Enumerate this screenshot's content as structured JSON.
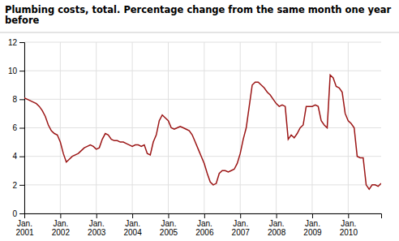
{
  "chart_data": {
    "type": "line",
    "title": "Plumbing costs, total. Percentage change from the same month one year\nbefore",
    "categories": [
      "Jan.\n2001",
      null,
      null,
      null,
      null,
      null,
      null,
      null,
      null,
      null,
      null,
      null,
      "Jan.\n2002",
      null,
      null,
      null,
      null,
      null,
      null,
      null,
      null,
      null,
      null,
      null,
      "Jan.\n2003",
      null,
      null,
      null,
      null,
      null,
      null,
      null,
      null,
      null,
      null,
      null,
      "Jan.\n2004",
      null,
      null,
      null,
      null,
      null,
      null,
      null,
      null,
      null,
      null,
      null,
      "Jan.\n2005",
      null,
      null,
      null,
      null,
      null,
      null,
      null,
      null,
      null,
      null,
      null,
      "Jan.\n2006",
      null,
      null,
      null,
      null,
      null,
      null,
      null,
      null,
      null,
      null,
      null,
      "Jan.\n2007",
      null,
      null,
      null,
      null,
      null,
      null,
      null,
      null,
      null,
      null,
      null,
      "Jan.\n2008",
      null,
      null,
      null,
      null,
      null,
      null,
      null,
      null,
      null,
      null,
      null,
      "Jan.\n2009",
      null,
      null,
      null,
      null,
      null,
      null,
      null,
      null,
      null,
      null,
      null,
      "Jan.\n2010",
      null,
      null,
      null,
      null,
      null,
      null,
      null,
      null,
      null,
      null,
      null
    ],
    "values": [
      8.1,
      8.0,
      7.9,
      7.8,
      7.7,
      7.5,
      7.2,
      6.8,
      6.2,
      5.8,
      5.6,
      5.5,
      5.0,
      4.2,
      3.6,
      3.8,
      4.0,
      4.1,
      4.2,
      4.4,
      4.6,
      4.7,
      4.8,
      4.7,
      4.5,
      4.6,
      5.2,
      5.6,
      5.5,
      5.2,
      5.1,
      5.1,
      5.0,
      5.0,
      4.9,
      4.8,
      4.7,
      4.8,
      4.8,
      4.7,
      4.8,
      4.2,
      4.1,
      5.0,
      5.5,
      6.5,
      6.9,
      6.7,
      6.5,
      6.0,
      5.9,
      6.0,
      6.1,
      6.0,
      5.9,
      5.8,
      5.5,
      5.0,
      4.5,
      4.0,
      3.5,
      2.8,
      2.2,
      2.0,
      2.1,
      2.8,
      3.0,
      3.0,
      2.9,
      3.0,
      3.1,
      3.5,
      4.2,
      5.2,
      6.0,
      7.5,
      9.0,
      9.2,
      9.2,
      9.0,
      8.8,
      8.5,
      8.3,
      8.0,
      7.7,
      7.5,
      7.6,
      7.5,
      5.2,
      5.5,
      5.3,
      5.6,
      6.0,
      6.2,
      7.5,
      7.5,
      7.5,
      7.6,
      7.5,
      6.5,
      6.2,
      6.0,
      9.7,
      9.5,
      8.9,
      8.8,
      8.5,
      7.0,
      6.5,
      6.3,
      6.0,
      4.0,
      3.9,
      3.9,
      2.0,
      1.7,
      2.0,
      2.0,
      1.9,
      2.1
    ],
    "color": "#9b1515",
    "ylim": [
      0,
      12
    ],
    "yticks": [
      0,
      2,
      4,
      6,
      8,
      10,
      12
    ],
    "grid": true
  }
}
